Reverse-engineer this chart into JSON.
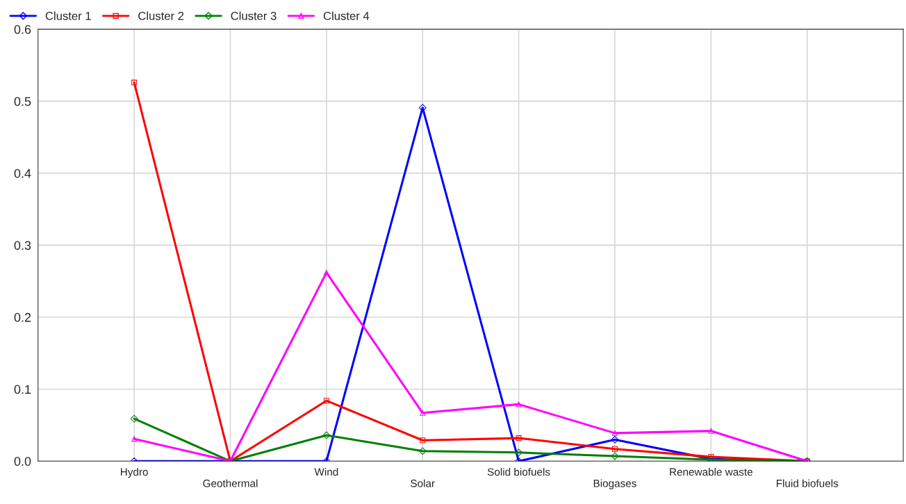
{
  "chart_data": {
    "type": "line",
    "categories": [
      "Hydro",
      "Geothermal",
      "Wind",
      "Solar",
      "Solid biofuels",
      "Biogases",
      "Renewable waste",
      "Fluid biofuels"
    ],
    "series": [
      {
        "name": "Cluster 1",
        "color": "#0000ff",
        "marker": "diamond",
        "values": [
          0,
          0,
          0,
          0.491,
          0,
          0.03,
          0.003,
          0
        ]
      },
      {
        "name": "Cluster 2",
        "color": "#ff0000",
        "marker": "square",
        "values": [
          0.526,
          0,
          0.084,
          0.029,
          0.032,
          0.017,
          0.006,
          0
        ]
      },
      {
        "name": "Cluster 3",
        "color": "#007f00",
        "marker": "diamond",
        "values": [
          0.059,
          0,
          0.036,
          0.014,
          0.012,
          0.007,
          0.002,
          0
        ]
      },
      {
        "name": "Cluster 4",
        "color": "#ff00ff",
        "marker": "triangle",
        "values": [
          0.031,
          0,
          0.262,
          0.067,
          0.079,
          0.039,
          0.042,
          0
        ]
      }
    ],
    "ylim": [
      0,
      0.6
    ],
    "yticks": [
      {
        "value": 0,
        "label": "0.0"
      },
      0.1,
      0.2,
      0.3,
      0.4,
      0.5,
      0.6
    ],
    "grid": true,
    "legend": "top left"
  }
}
